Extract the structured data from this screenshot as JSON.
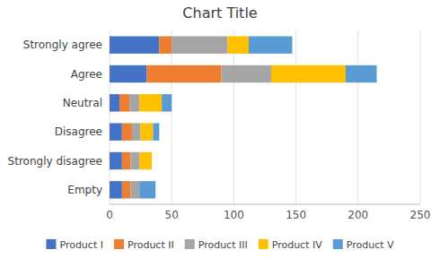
{
  "chart_data": {
    "type": "bar",
    "orientation": "horizontal",
    "stacked": true,
    "title": "Chart Title",
    "categories": [
      "Empty",
      "Strongly disagree",
      "Disagree",
      "Neutral",
      "Agree",
      "Strongly agree"
    ],
    "series": [
      {
        "name": "Product I",
        "color": "#4472C4",
        "values": [
          10,
          10,
          10,
          8,
          30,
          40
        ]
      },
      {
        "name": "Product II",
        "color": "#ED7D31",
        "values": [
          7,
          7,
          8,
          8,
          60,
          10
        ]
      },
      {
        "name": "Product III",
        "color": "#A5A5A5",
        "values": [
          7,
          7,
          7,
          8,
          40,
          45
        ]
      },
      {
        "name": "Product IV",
        "color": "#FFC000",
        "values": [
          0,
          10,
          10,
          18,
          60,
          17
        ]
      },
      {
        "name": "Product V",
        "color": "#5B9BD5",
        "values": [
          13,
          0,
          5,
          8,
          25,
          35
        ]
      }
    ],
    "xlim": [
      0,
      250
    ],
    "xticks": [
      0,
      50,
      100,
      150,
      200,
      250
    ],
    "grid": true,
    "legend": "bottom"
  }
}
